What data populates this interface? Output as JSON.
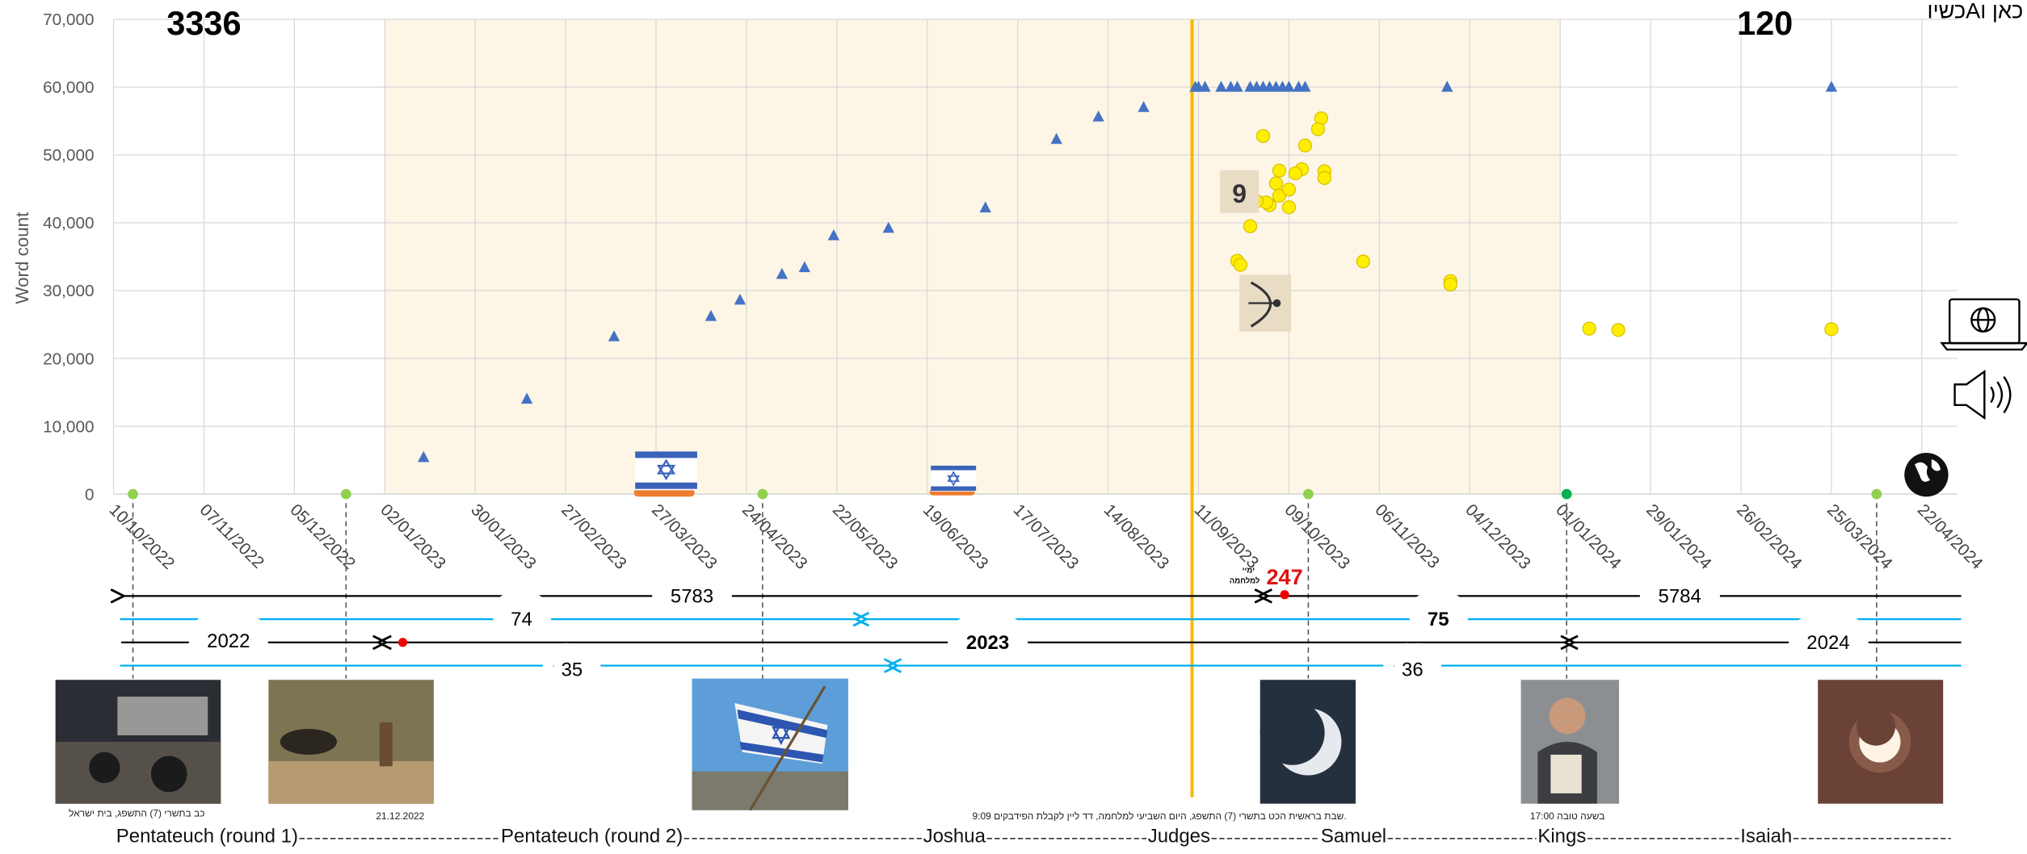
{
  "chart_data": {
    "type": "scatter",
    "y_label": "Word count",
    "annotations": [
      "3336",
      "120",
      "כשיוAכאן ו"
    ],
    "xlim": [
      "2022-10-10",
      "2024-05-03"
    ],
    "xticks": [
      {
        "value": "2022-10-10",
        "label": "10/10/2022"
      },
      {
        "value": "2022-11-07",
        "label": "07/11/2022"
      },
      {
        "value": "2022-12-05",
        "label": "05/12/2022"
      },
      {
        "value": "2023-01-02",
        "label": "02/01/2023"
      },
      {
        "value": "2023-01-30",
        "label": "30/01/2023"
      },
      {
        "value": "2023-02-27",
        "label": "27/02/2023"
      },
      {
        "value": "2023-03-27",
        "label": "27/03/2023"
      },
      {
        "value": "2023-04-24",
        "label": "24/04/2023"
      },
      {
        "value": "2023-05-22",
        "label": "22/05/2023"
      },
      {
        "value": "2023-06-19",
        "label": "19/06/2023"
      },
      {
        "value": "2023-07-17",
        "label": "17/07/2023"
      },
      {
        "value": "2023-08-14",
        "label": "14/08/2023"
      },
      {
        "value": "2023-09-11",
        "label": "11/09/2023"
      },
      {
        "value": "2023-10-09",
        "label": "09/10/2023"
      },
      {
        "value": "2023-11-06",
        "label": "06/11/2023"
      },
      {
        "value": "2023-12-04",
        "label": "04/12/2023"
      },
      {
        "value": "2024-01-01",
        "label": "01/01/2024"
      },
      {
        "value": "2024-01-29",
        "label": "29/01/2024"
      },
      {
        "value": "2024-02-26",
        "label": "26/02/2024"
      },
      {
        "value": "2024-03-25",
        "label": "25/03/2024"
      },
      {
        "value": "2024-04-22",
        "label": "22/04/2024"
      }
    ],
    "ylim": [
      0,
      70000
    ],
    "yticks": [
      0,
      {
        "value": 10000,
        "label": "10,000"
      },
      {
        "value": 20000,
        "label": "20,000"
      },
      {
        "value": 30000,
        "label": "30,000"
      },
      {
        "value": 40000,
        "label": "40,000"
      },
      {
        "value": 50000,
        "label": "50,000"
      },
      {
        "value": 60000,
        "label": "60,000"
      },
      {
        "value": 70000,
        "label": "70,000"
      }
    ],
    "grid": true,
    "shaded_range": [
      "2023-01-02",
      "2024-01-01"
    ],
    "shaded_color": "#fdf6e6",
    "event_line": "2023-09-09",
    "event_line_color": "#f5b800",
    "series": [
      {
        "marker": "triangle",
        "color": "#4472c4",
        "x": [
          "2023-01-14",
          "2023-02-15",
          "2023-03-14",
          "2023-04-13",
          "2023-04-22",
          "2023-05-05",
          "2023-05-12",
          "2023-05-21",
          "2023-06-07",
          "2023-07-07",
          "2023-07-29",
          "2023-08-11",
          "2023-08-25",
          "2023-09-10",
          "2023-09-11",
          "2023-09-13",
          "2023-09-18",
          "2023-09-21",
          "2023-09-23",
          "2023-09-27",
          "2023-09-29",
          "2023-10-01",
          "2023-10-03",
          "2023-10-05",
          "2023-10-07",
          "2023-10-09",
          "2023-10-12",
          "2023-10-14",
          "2023-11-27",
          "2024-03-25"
        ],
        "values": [
          5400,
          14000,
          23200,
          26200,
          28600,
          32400,
          33400,
          38100,
          39200,
          42200,
          52300,
          55600,
          57000,
          60000,
          60000,
          60000,
          60000,
          60000,
          60000,
          60000,
          60000,
          60000,
          60000,
          60000,
          60000,
          60000,
          60000,
          60000,
          60000,
          60000
        ]
      },
      {
        "marker": "circle",
        "color": "#ffee00",
        "x": [
          "2023-10-01",
          "2023-10-19",
          "2023-10-18",
          "2023-10-14",
          "2023-10-20",
          "2023-10-20",
          "2023-10-13",
          "2023-10-11",
          "2023-10-06",
          "2023-10-05",
          "2023-10-06",
          "2023-10-03",
          "2023-10-02",
          "2023-10-09",
          "2023-09-29",
          "2023-09-27",
          "2023-10-09",
          "2023-09-23",
          "2023-09-24",
          "2023-11-01",
          "2023-11-28",
          "2023-11-28",
          "2024-01-10",
          "2024-01-19",
          "2024-03-25"
        ],
        "values": [
          52800,
          55400,
          53800,
          51400,
          47600,
          46600,
          47900,
          47300,
          47700,
          45800,
          44000,
          42600,
          43000,
          44900,
          43200,
          39500,
          42300,
          34400,
          33800,
          34300,
          31400,
          30900,
          24400,
          24200,
          24300
        ]
      },
      {
        "marker": "dot",
        "color": "#92d050",
        "x": [
          "2022-10-16",
          "2022-12-21",
          "2023-04-29",
          "2023-10-15",
          "2024-04-08"
        ],
        "values": [
          0,
          0,
          0,
          0,
          0
        ]
      },
      {
        "marker": "dot",
        "color": "#00b050",
        "x": [
          "2024-01-03"
        ],
        "values": [
          0
        ]
      }
    ]
  },
  "timeline": {
    "hebrew_years": [
      "5783",
      "5784"
    ],
    "war_days": "247",
    "war_days_label": [
      "ימיי",
      "למלחמה"
    ],
    "row_2": [
      "74",
      "75"
    ],
    "years": [
      "2022",
      "2023",
      "2024"
    ],
    "row_4": [
      "35",
      "36"
    ]
  },
  "captions": [
    "כב בתשרי (7) התשפג, בית ישראל",
    "21.12.2022",
    "9:09 שבת בראשית הכט בתשרי (7) התשפג, היום השביעי למלחמה, דד ליין לקבלת הפידבקים.",
    "17:00 בשעה טובה"
  ],
  "books": [
    "Pentateuch (round 1)",
    "Pentateuch (round 2)",
    "Joshua",
    "Judges",
    "Samuel",
    "Kings",
    "Isaiah"
  ]
}
